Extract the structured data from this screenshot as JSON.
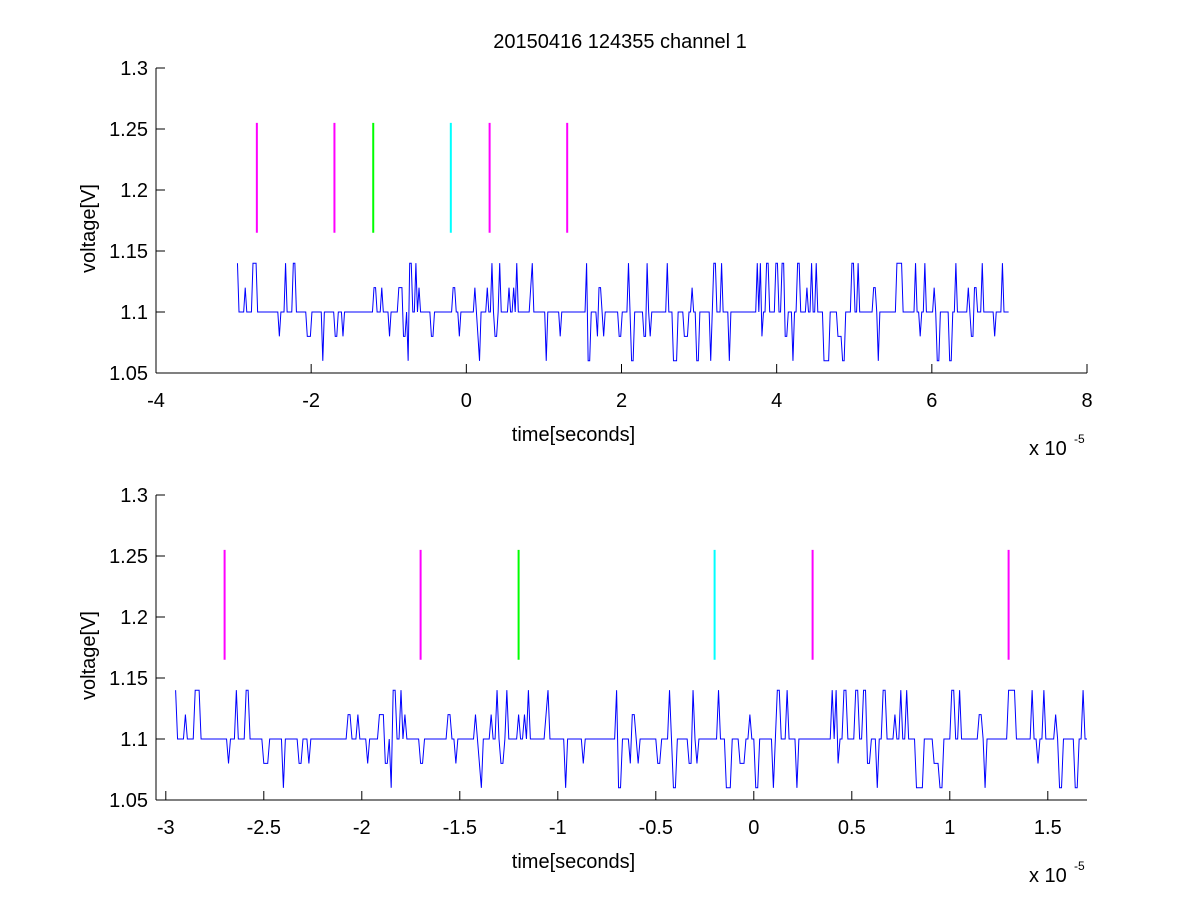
{
  "figure_title": "20150416 124355 channel 1",
  "chart_data": [
    {
      "type": "line",
      "title": "20150416 124355 channel 1",
      "xlabel": "time[seconds]",
      "ylabel": "voltage[V]",
      "x_exponent_label": "x 10",
      "x_exponent_power": "-5",
      "xlim": [
        -4,
        8
      ],
      "ylim": [
        1.05,
        1.3
      ],
      "xticks": [
        "-4",
        "-2",
        "0",
        "2",
        "4",
        "6",
        "8"
      ],
      "xtick_values": [
        -4,
        -2,
        0,
        2,
        4,
        6,
        8
      ],
      "yticks": [
        "1.05",
        "1.1",
        "1.15",
        "1.2",
        "1.25",
        "1.3"
      ],
      "ytick_values": [
        1.05,
        1.1,
        1.15,
        1.2,
        1.25,
        1.3
      ],
      "grid": false,
      "series": [
        {
          "color": "#0000ff",
          "x_range": [
            -2.95,
            7.0
          ],
          "levels": [
            1.06,
            1.08,
            1.1,
            1.12,
            1.14
          ],
          "baseline": 1.1,
          "x_unit": "1e-5 s"
        }
      ],
      "markers": [
        {
          "x": -2.7,
          "y": [
            1.165,
            1.255
          ],
          "color": "#ff00ff"
        },
        {
          "x": -1.7,
          "y": [
            1.165,
            1.255
          ],
          "color": "#ff00ff"
        },
        {
          "x": -1.2,
          "y": [
            1.165,
            1.255
          ],
          "color": "#00ff00"
        },
        {
          "x": -0.2,
          "y": [
            1.165,
            1.255
          ],
          "color": "#00ffff"
        },
        {
          "x": 0.3,
          "y": [
            1.165,
            1.255
          ],
          "color": "#ff00ff"
        },
        {
          "x": 1.3,
          "y": [
            1.165,
            1.255
          ],
          "color": "#ff00ff"
        }
      ]
    },
    {
      "type": "line",
      "title": "",
      "xlabel": "time[seconds]",
      "ylabel": "voltage[V]",
      "x_exponent_label": "x 10",
      "x_exponent_power": "-5",
      "xlim": [
        -3.05,
        1.7
      ],
      "ylim": [
        1.05,
        1.3
      ],
      "xticks": [
        "-3",
        "-2.5",
        "-2",
        "-1.5",
        "-1",
        "-0.5",
        "0",
        "0.5",
        "1",
        "1.5"
      ],
      "xtick_values": [
        -3,
        -2.5,
        -2,
        -1.5,
        -1,
        -0.5,
        0,
        0.5,
        1,
        1.5
      ],
      "yticks": [
        "1.05",
        "1.1",
        "1.15",
        "1.2",
        "1.25",
        "1.3"
      ],
      "ytick_values": [
        1.05,
        1.1,
        1.15,
        1.2,
        1.25,
        1.3
      ],
      "grid": false,
      "series": [
        {
          "color": "#0000ff",
          "x_range": [
            -2.95,
            1.7
          ],
          "levels": [
            1.06,
            1.08,
            1.1,
            1.12,
            1.14
          ],
          "baseline": 1.1,
          "x_unit": "1e-5 s"
        }
      ],
      "markers": [
        {
          "x": -2.7,
          "y": [
            1.165,
            1.255
          ],
          "color": "#ff00ff"
        },
        {
          "x": -1.7,
          "y": [
            1.165,
            1.255
          ],
          "color": "#ff00ff"
        },
        {
          "x": -1.2,
          "y": [
            1.165,
            1.255
          ],
          "color": "#00ff00"
        },
        {
          "x": -0.2,
          "y": [
            1.165,
            1.255
          ],
          "color": "#00ffff"
        },
        {
          "x": 0.3,
          "y": [
            1.165,
            1.255
          ],
          "color": "#ff00ff"
        },
        {
          "x": 1.3,
          "y": [
            1.165,
            1.255
          ],
          "color": "#ff00ff"
        }
      ]
    }
  ]
}
